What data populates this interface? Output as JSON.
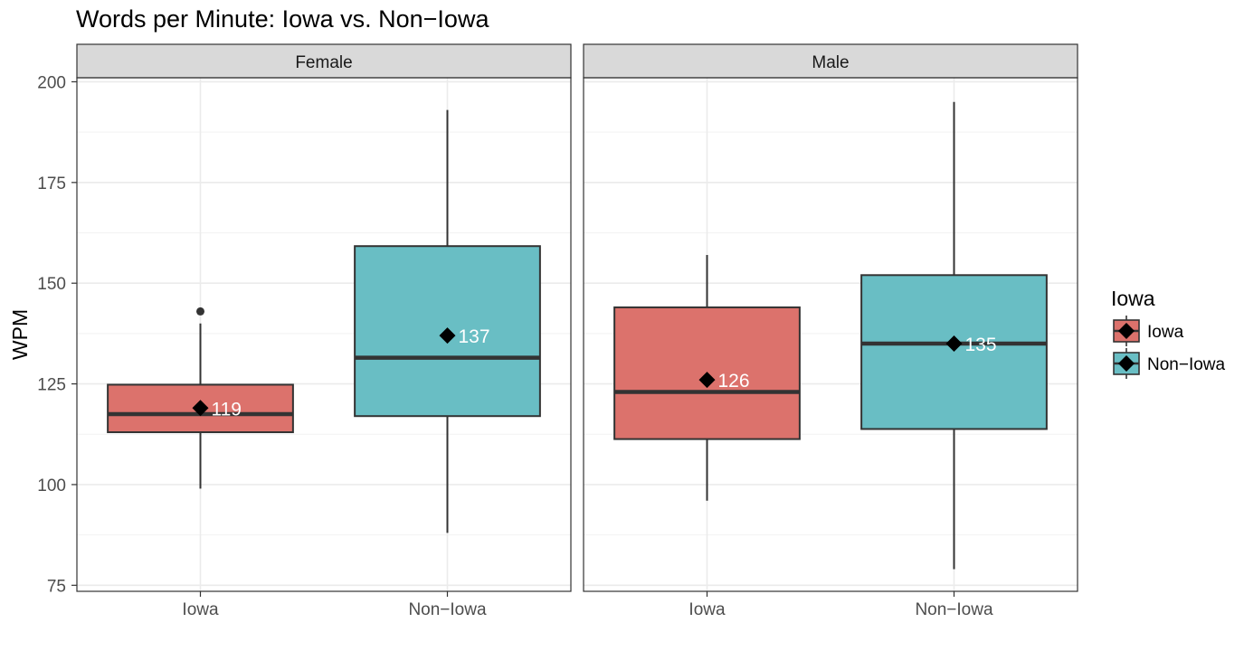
{
  "chart_data": {
    "type": "boxplot",
    "title": "Words per Minute: Iowa vs. Non−Iowa",
    "xlabel": "",
    "ylabel": "WPM",
    "ylim": [
      73.5,
      201
    ],
    "yticks": [
      75,
      100,
      125,
      150,
      175,
      200
    ],
    "categories": [
      "Iowa",
      "Non−Iowa"
    ],
    "grid": true,
    "legend": {
      "title": "Iowa",
      "position": "right",
      "entries": [
        {
          "label": "Iowa",
          "color": "#dc726c"
        },
        {
          "label": "Non−Iowa",
          "color": "#69bec4"
        }
      ]
    },
    "facets": [
      {
        "label": "Female",
        "boxes": [
          {
            "category": "Iowa",
            "min": 99,
            "q1": 113,
            "median": 117.5,
            "q3": 124.8,
            "max": 140,
            "outliers": [
              143
            ],
            "mean": 119,
            "mean_label": "119"
          },
          {
            "category": "Non−Iowa",
            "min": 88,
            "q1": 117,
            "median": 131.5,
            "q3": 159.2,
            "max": 193,
            "outliers": [],
            "mean": 137,
            "mean_label": "137"
          }
        ]
      },
      {
        "label": "Male",
        "boxes": [
          {
            "category": "Iowa",
            "min": 96,
            "q1": 111.3,
            "median": 123,
            "q3": 144,
            "max": 157,
            "outliers": [],
            "mean": 126,
            "mean_label": "126"
          },
          {
            "category": "Non−Iowa",
            "min": 79,
            "q1": 113.8,
            "median": 135,
            "q3": 152,
            "max": 195,
            "outliers": [],
            "mean": 135,
            "mean_label": "135"
          }
        ]
      }
    ]
  }
}
